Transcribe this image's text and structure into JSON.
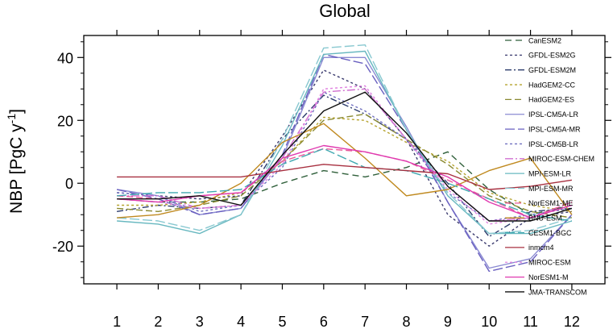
{
  "chart_data": {
    "type": "line",
    "title": "Global",
    "xlabel": "",
    "ylabel": "NBP [PgC y",
    "ylabel_superscript": "-1",
    "ylabel_suffix": "]",
    "x": [
      1,
      2,
      3,
      4,
      5,
      6,
      7,
      8,
      9,
      10,
      11,
      12
    ],
    "xlim": [
      0.2,
      12.8
    ],
    "ylim": [
      -32,
      47
    ],
    "yticks": [
      -20,
      0,
      20,
      40
    ],
    "grid": false,
    "legend_position": "right, inside plot",
    "series": [
      {
        "name": "CanESM2",
        "color": "#2f5f3a",
        "dash": "8,5",
        "values": [
          -5,
          -6,
          -6,
          -5,
          0,
          4,
          2,
          5,
          10,
          -2,
          -10,
          -7
        ]
      },
      {
        "name": "GFDL-ESM2G",
        "color": "#3a3a6e",
        "dash": "3,3",
        "values": [
          -3,
          -4,
          -5,
          -4,
          15,
          36,
          30,
          14,
          -10,
          -20,
          -11,
          -9
        ]
      },
      {
        "name": "GFDL-ESM2M",
        "color": "#2c3c6c",
        "dash": "8,3,2,3",
        "values": [
          -9,
          -7,
          -8,
          -7,
          14,
          28,
          22,
          14,
          0,
          -17,
          -9,
          -8
        ]
      },
      {
        "name": "HadGEM2-CC",
        "color": "#b5a32e",
        "dash": "3,3",
        "values": [
          -7,
          -7,
          -6,
          -3,
          7,
          21,
          20,
          13,
          7,
          -3,
          -7,
          -9
        ]
      },
      {
        "name": "HadGEM2-ES",
        "color": "#8a8a32",
        "dash": "8,4",
        "values": [
          -8,
          -9,
          -7,
          -4,
          7,
          20,
          22,
          14,
          6,
          -4,
          -9,
          -11
        ]
      },
      {
        "name": "IPSL-CM5A-LR",
        "color": "#8a8ad2",
        "dash": "",
        "values": [
          -2,
          -4,
          -10,
          -8,
          8,
          40,
          40,
          18,
          -6,
          -27,
          -24,
          -10
        ]
      },
      {
        "name": "IPSL-CM5A-MR",
        "color": "#6a60c0",
        "dash": "12,4",
        "values": [
          -2,
          -5,
          -10,
          -8,
          9,
          41,
          38,
          17,
          -6,
          -28,
          -25,
          -10
        ]
      },
      {
        "name": "IPSL-CM5B-LR",
        "color": "#7070c0",
        "dash": "3,3",
        "values": [
          -3,
          -4,
          -9,
          -7,
          5,
          29,
          23,
          14,
          -3,
          -12,
          -10,
          -8
        ]
      },
      {
        "name": "MIROC-ESM-CHEM",
        "color": "#d070d0",
        "dash": "10,3,2,3",
        "values": [
          -4,
          -4,
          -8,
          -7,
          8,
          29,
          30,
          14,
          -1,
          -12,
          -11,
          -6
        ]
      },
      {
        "name": "MPI-ESM-LR",
        "color": "#68b8c0",
        "dash": "",
        "values": [
          -12,
          -13,
          -16,
          -10,
          12,
          41,
          42,
          17,
          -4,
          -16,
          -16,
          -12
        ]
      },
      {
        "name": "MPI-ESM-MR",
        "color": "#88c8d0",
        "dash": "12,4",
        "values": [
          -11,
          -12,
          -15,
          -10,
          14,
          43,
          44,
          17,
          -3,
          -16,
          -15,
          -11
        ]
      },
      {
        "name": "NorESM1-ME",
        "color": "#e85898",
        "dash": "8,4",
        "values": [
          -4,
          -5,
          -4,
          -3,
          7,
          11,
          10,
          7,
          1,
          -5,
          -11,
          -6
        ]
      },
      {
        "name": "BNU-ESM",
        "color": "#c08a20",
        "dash": "",
        "values": [
          -11,
          -10,
          -7,
          0,
          13,
          19,
          8,
          -4,
          -2,
          4,
          8,
          -10
        ]
      },
      {
        "name": "CESM1-BGC",
        "color": "#40a8b0",
        "dash": "12,4",
        "values": [
          -4,
          -3,
          -3,
          -2,
          6,
          11,
          5,
          4,
          0,
          -5,
          -10,
          -12
        ]
      },
      {
        "name": "inmcm4",
        "color": "#a83040",
        "dash": "",
        "values": [
          2,
          2,
          2,
          2,
          4,
          6,
          5,
          4,
          3,
          -2,
          -1,
          1
        ]
      },
      {
        "name": "MIROC-ESM",
        "color": "#e080e0",
        "dash": "3,3",
        "values": [
          -5,
          -6,
          -8,
          -7,
          6,
          30,
          31,
          14,
          -2,
          -13,
          -11,
          -7
        ]
      },
      {
        "name": "NorESM1-M",
        "color": "#e03ab0",
        "dash": "",
        "values": [
          -5,
          -6,
          -4,
          -3,
          8,
          12,
          10,
          7,
          2,
          -6,
          -11,
          -7
        ]
      },
      {
        "name": "JMA-TRANSCOM",
        "color": "#101010",
        "dash": "",
        "values": [
          -5,
          -5,
          -4,
          -7,
          9,
          23,
          29,
          16,
          -1,
          -12,
          -12,
          -8
        ]
      }
    ]
  }
}
